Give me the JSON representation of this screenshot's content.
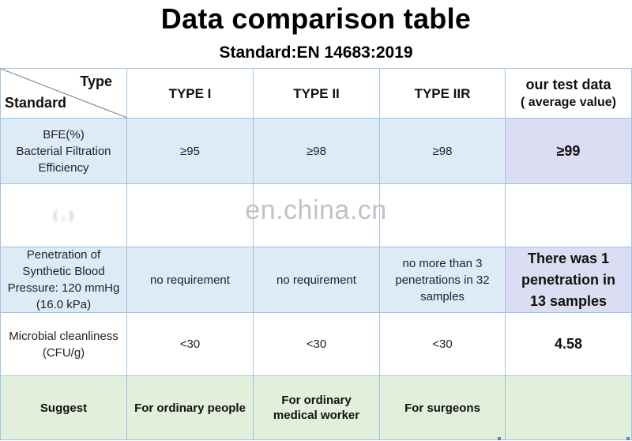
{
  "title": "Data comparison table",
  "subtitle": "Standard:EN 14683:2019",
  "header": {
    "type_label": "Type",
    "standard_label": "Standard",
    "columns": [
      "TYPE I",
      "TYPE II",
      "TYPE IIR"
    ],
    "our_data_line1": "our test data",
    "our_data_line2": "( average value)"
  },
  "rows": [
    {
      "label": "BFE(%)\nBacterial Filtration\nEfficiency",
      "values": [
        "≥95",
        "≥98",
        "≥98"
      ],
      "our": "≥99"
    },
    {
      "label": "( , )",
      "values": [
        "",
        "",
        ""
      ],
      "our": ""
    },
    {
      "label": "Penetration of\nSynthetic Blood\nPressure: 120 mmHg\n(16.0 kPa)",
      "values": [
        "no requirement",
        "no requirement",
        "no more than 3\npenetrations in 32\nsamples"
      ],
      "our": "There was 1\npenetration in\n13 samples"
    },
    {
      "label": "Microbial cleanliness\n(CFU/g)",
      "values": [
        "<30",
        "<30",
        "<30"
      ],
      "our": "4.58"
    }
  ],
  "suggest": {
    "label": "Suggest",
    "values": [
      "For ordinary people",
      "For ordinary\nmedical worker",
      "For surgeons"
    ],
    "our": ""
  },
  "watermark": "en.china.cn",
  "colors": {
    "grid_line": "#9dc3e6",
    "row_blue": "#ddebf7",
    "highlight_lavender": "#dcdcf2",
    "suggest_green": "#e2efda"
  }
}
